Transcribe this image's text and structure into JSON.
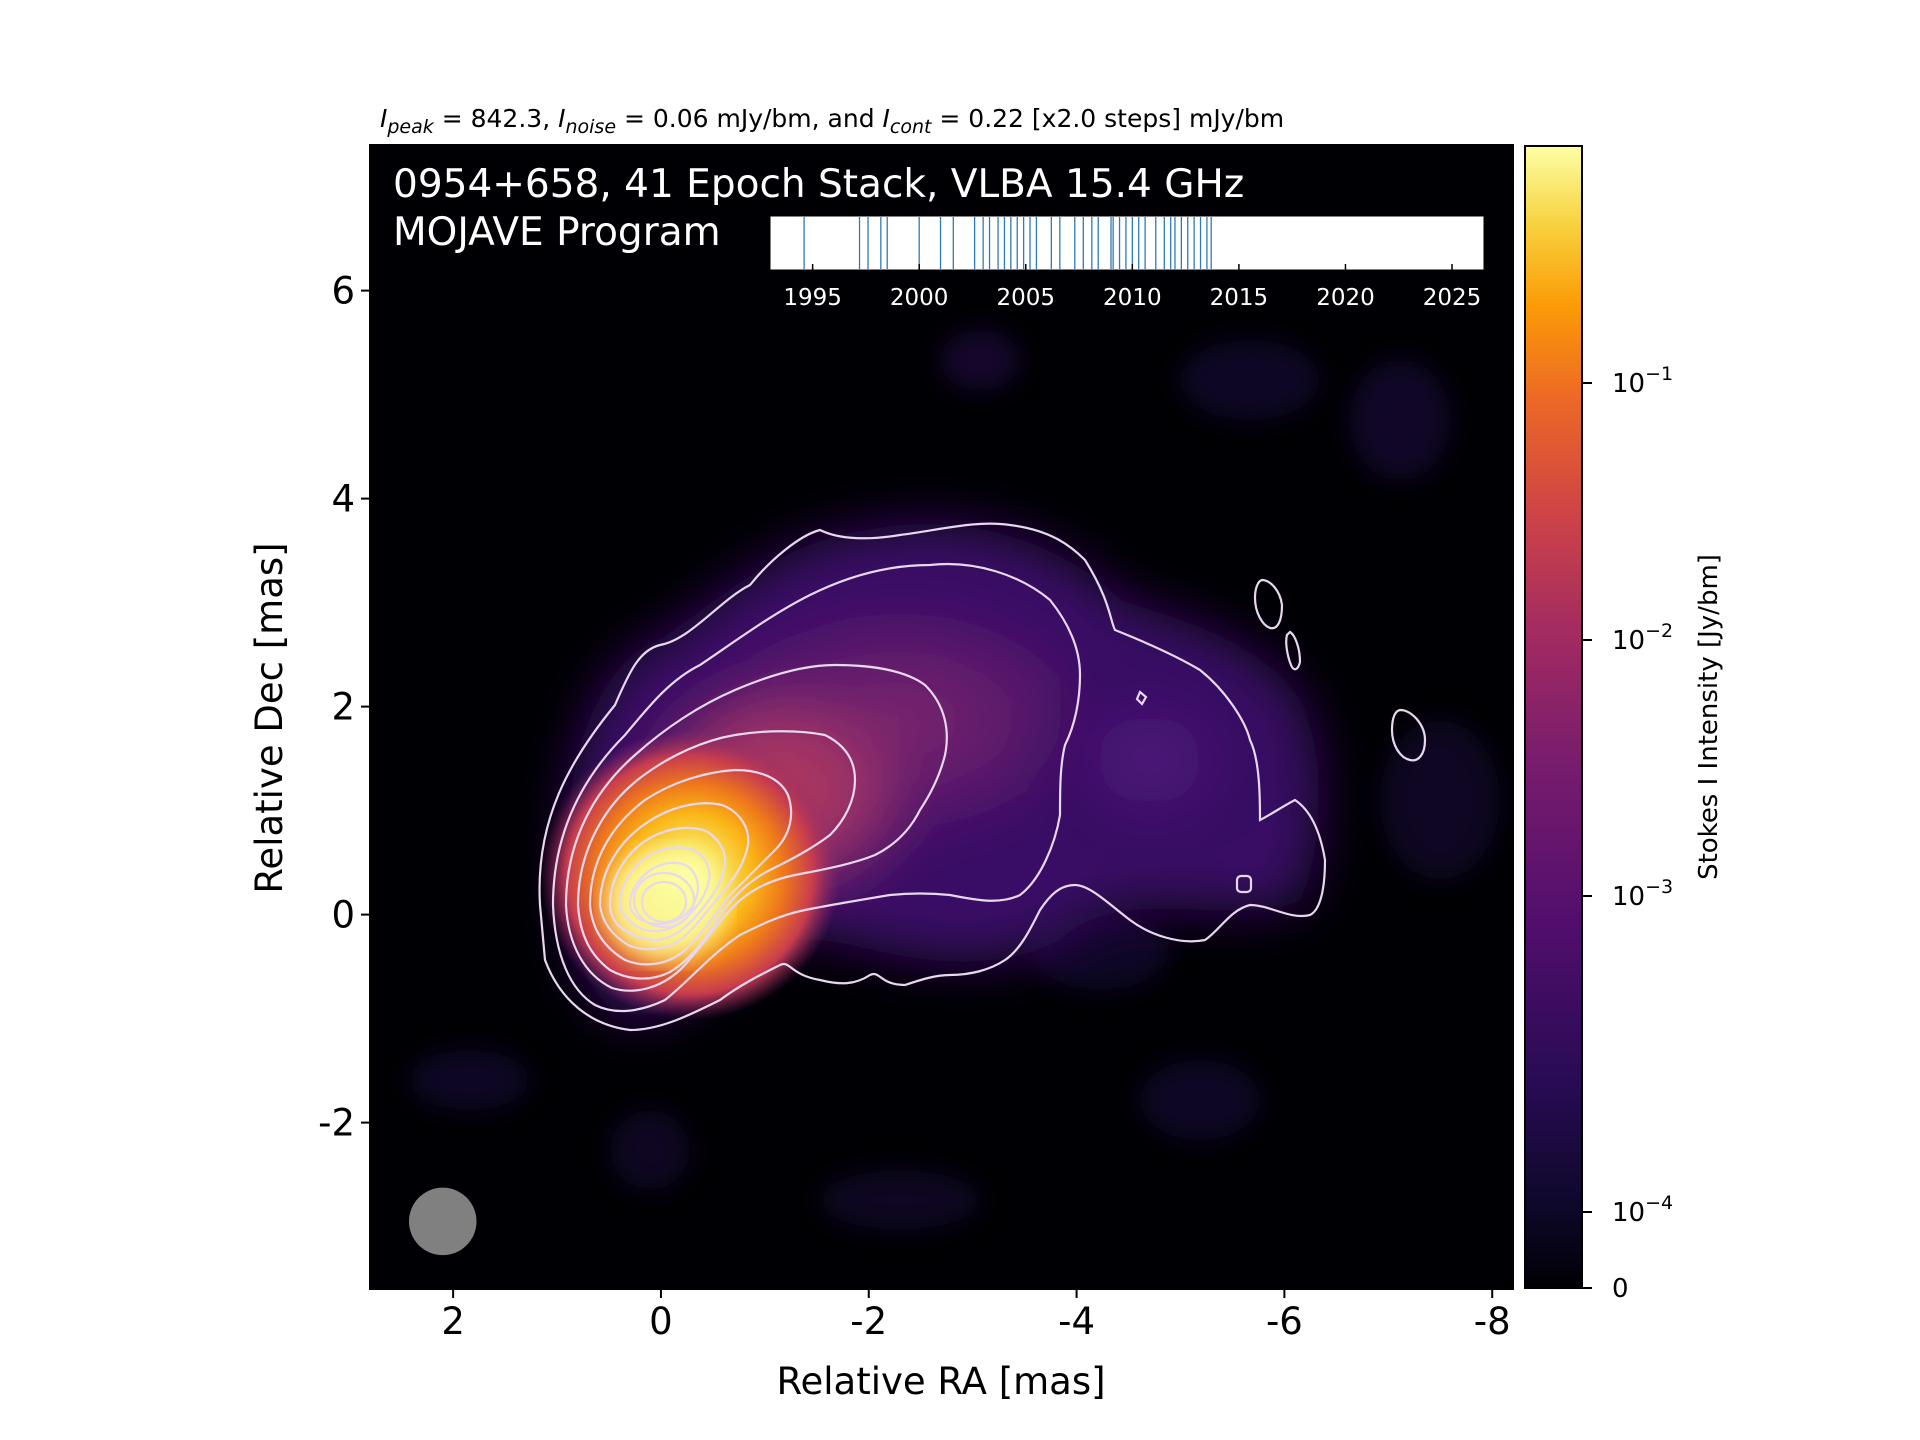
{
  "title": {
    "ipeak_label": "I",
    "ipeak_sub": "peak",
    "ipeak_value": " = 842.3, ",
    "inoise_label": "I",
    "inoise_sub": "noise",
    "inoise_value": " = 0.06 mJy/bm, and ",
    "icont_label": "I",
    "icont_sub": "cont",
    "icont_value": " = 0.22 [x2.0 steps] mJy/bm"
  },
  "overlay": {
    "line1": "0954+658, 41 Epoch Stack, VLBA 15.4 GHz",
    "line2": "MOJAVE Program"
  },
  "timeline": {
    "range": [
      1993,
      2026.5
    ],
    "ticks": [
      "1995",
      "2000",
      "2005",
      "2010",
      "2015",
      "2020",
      "2025"
    ],
    "epochs": [
      1994.6,
      1997.2,
      1997.6,
      1998.2,
      1998.5,
      2000.0,
      2001.0,
      2001.6,
      2002.6,
      2003.0,
      2003.3,
      2003.7,
      2004.0,
      2004.3,
      2004.6,
      2004.9,
      2005.2,
      2005.5,
      2006.2,
      2006.6,
      2007.3,
      2007.7,
      2008.1,
      2008.4,
      2009.0,
      2009.4,
      2009.7,
      2010.0,
      2010.3,
      2010.6,
      2011.1,
      2011.5,
      2012.0,
      2012.3,
      2012.6,
      2012.9,
      2013.2,
      2013.5,
      2013.7,
      2009.1,
      2011.8
    ],
    "color": "#2f7bb5"
  },
  "chart_data": {
    "type": "heatmap",
    "xlabel": "Relative RA [mas]",
    "ylabel": "Relative Dec [mas]",
    "xlim": [
      2.8,
      -8.2
    ],
    "ylim": [
      -3.6,
      7.4
    ],
    "xticks": [
      "2",
      "0",
      "-2",
      "-4",
      "-6",
      "-8"
    ],
    "yticks": [
      "6",
      "4",
      "2",
      "0",
      "-2"
    ],
    "colorbar": {
      "label": "Stokes I Intensity [Jy/bm]",
      "colormap": "inferno",
      "ticks": [
        {
          "base": "10",
          "exp": "−1",
          "value": 0.1
        },
        {
          "base": "10",
          "exp": "−2",
          "value": 0.01
        },
        {
          "base": "10",
          "exp": "−3",
          "value": 0.001
        },
        {
          "base": "10",
          "exp": "−4",
          "value": 0.0001
        },
        {
          "base": "0",
          "exp": "",
          "value": 0
        }
      ]
    },
    "peak_Jy_per_beam": 0.8423,
    "noise_mJy_per_beam": 0.06,
    "lowest_contour_mJy_per_beam": 0.22,
    "contour_step": 2.0,
    "beam": {
      "x": 2.1,
      "y": -2.95,
      "diameter_mas": 0.65,
      "color": "#808080"
    },
    "contour_color": "#e8d8ee"
  }
}
